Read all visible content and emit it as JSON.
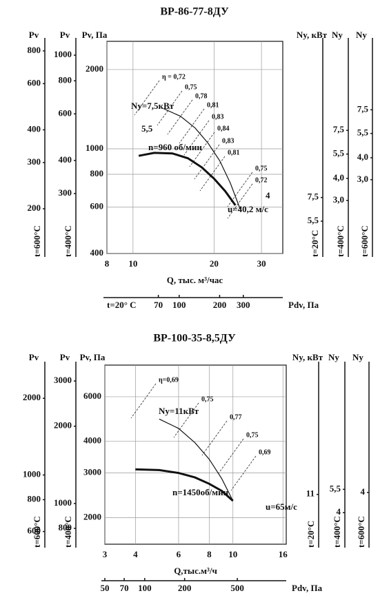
{
  "chart_data": [
    {
      "type": "line",
      "title": "ВР-86-77-8ДУ",
      "x_label": "Q, тыс. м³/час",
      "y_label": "Pv, Па",
      "log_x": true,
      "log_y": true,
      "grid": true,
      "xlim": [
        8,
        36
      ],
      "xticks": [
        8,
        10,
        20,
        30
      ],
      "ylim": [
        400,
        2560
      ],
      "yticks": [
        400,
        600,
        800,
        1000,
        2000
      ],
      "series": [
        {
          "name": "n=960 об/мин",
          "color": "#111111",
          "width": 3,
          "x": [
            10.5,
            12,
            14,
            16,
            18,
            20,
            22,
            24
          ],
          "values": [
            940,
            965,
            960,
            920,
            850,
            770,
            690,
            610
          ]
        },
        {
          "name": "Nу=7,5кВт",
          "color": "#111111",
          "width": 1.2,
          "x": [
            13,
            15,
            17,
            19,
            21,
            23,
            25
          ],
          "values": [
            1420,
            1330,
            1200,
            1050,
            900,
            740,
            590
          ]
        }
      ],
      "annotations": [
        "5,5",
        "4",
        "u=40,2 м/с"
      ],
      "efficiency_labels": [
        {
          "value": 0.72,
          "label": "η = 0,72"
        },
        {
          "value": 0.75,
          "label": "0,75"
        },
        {
          "value": 0.78,
          "label": "0,78"
        },
        {
          "value": 0.81,
          "label": "0,81"
        },
        {
          "value": 0.83,
          "label": "0,83"
        },
        {
          "value": 0.84,
          "label": "0,84"
        },
        {
          "value": 0.83,
          "label": "0,83"
        },
        {
          "value": 0.81,
          "label": "0,81"
        },
        {
          "value": 0.75,
          "label": "0,75"
        },
        {
          "value": 0.72,
          "label": "0,72"
        }
      ],
      "side_axes": [
        {
          "side": "left",
          "label": "Pv",
          "temperature": "t=600°C",
          "ylim": [
            135,
            870
          ],
          "ticks": [
            200,
            300,
            400,
            600,
            800
          ]
        },
        {
          "side": "left",
          "label": "Pv",
          "temperature": "t=400°C",
          "ylim": [
            178,
            1128
          ],
          "ticks": [
            300,
            400,
            600,
            800,
            1000
          ]
        },
        {
          "side": "right",
          "label": "Ny, кВт",
          "temperature": "t=20°C",
          "ylim": [
            3.6,
            58
          ],
          "ticks": [
            {
              "value": 5.5,
              "label": "5,5"
            },
            {
              "value": 7.5,
              "label": "7,5"
            }
          ]
        },
        {
          "side": "right",
          "label": "Ny",
          "temperature": "t=400°C",
          "ylim": [
            1.5,
            24
          ],
          "ticks": [
            {
              "value": 3,
              "label": "3,0"
            },
            {
              "value": 4,
              "label": "4,0"
            },
            {
              "value": 5.5,
              "label": "5,5"
            },
            {
              "value": 7.5,
              "label": "7,5"
            }
          ]
        },
        {
          "side": "right",
          "label": "Ny",
          "temperature": "t=600°C",
          "ylim": [
            1.14,
            18.4
          ],
          "ticks": [
            {
              "value": 3,
              "label": "3,0"
            },
            {
              "value": 4,
              "label": "4,0"
            },
            {
              "value": 5.5,
              "label": "5,5"
            },
            {
              "value": 7.5,
              "label": "7,5"
            }
          ]
        }
      ],
      "bottom_axis": {
        "label": "Pdv, Па",
        "temperature": "t=20° С",
        "xlim": [
          29,
          590
        ],
        "ticks": [
          70,
          100,
          200,
          300
        ]
      }
    },
    {
      "type": "line",
      "title": "ВР-100-35-8,5ДУ",
      "x_label": "Q,тыс.м³/ч",
      "y_label": "Pv, Па",
      "log_x": true,
      "log_y": true,
      "grid": true,
      "xlim": [
        3,
        16.5
      ],
      "xticks": [
        3,
        4,
        6,
        8,
        10,
        16
      ],
      "ylim": [
        1570,
        8000
      ],
      "yticks": [
        2000,
        3000,
        4000,
        6000
      ],
      "series": [
        {
          "name": "n=1450об/мин",
          "color": "#111111",
          "width": 3,
          "x": [
            4,
            5,
            6,
            7,
            8,
            9,
            10
          ],
          "values": [
            3100,
            3080,
            3000,
            2880,
            2720,
            2550,
            2330
          ]
        },
        {
          "name": "Ny=11кВт",
          "color": "#111111",
          "width": 1.2,
          "x": [
            5,
            6,
            7,
            8,
            9,
            10
          ],
          "values": [
            4900,
            4500,
            3950,
            3400,
            2850,
            2330
          ]
        }
      ],
      "annotations": [
        "u=65м/с"
      ],
      "efficiency_labels": [
        {
          "value": 0.69,
          "label": "η=0,69"
        },
        {
          "value": 0.75,
          "label": "0,75"
        },
        {
          "value": 0.77,
          "label": "0,77"
        },
        {
          "value": 0.75,
          "label": "0,75"
        },
        {
          "value": 0.69,
          "label": "0,69"
        }
      ],
      "side_axes": [
        {
          "side": "left",
          "label": "Pv",
          "temperature": "t=600°C",
          "ylim": [
            535,
            2700
          ],
          "ticks": [
            600,
            800,
            1000,
            2000
          ]
        },
        {
          "side": "left",
          "label": "Pv",
          "temperature": "t=400°C",
          "ylim": [
            694,
            3460
          ],
          "ticks": [
            800,
            1000,
            2000,
            3000
          ]
        },
        {
          "side": "right",
          "label": "Ny, кВт",
          "temperature": "t=20°C",
          "ylim": [
            5.8,
            58
          ],
          "ticks": [
            11
          ]
        },
        {
          "side": "right",
          "label": "Ny",
          "temperature": "t=400°C",
          "ylim": [
            2.6,
            30
          ],
          "ticks": [
            4,
            {
              "value": 5.5,
              "label": "5,5"
            }
          ]
        },
        {
          "side": "right",
          "label": "Ny",
          "temperature": "t=600°C",
          "ylim": [
            2.0,
            22
          ],
          "ticks": [
            4
          ]
        }
      ],
      "bottom_axis": {
        "label": "Pdv, Па",
        "xlim": [
          50,
          1170
        ],
        "ticks": [
          50,
          70,
          100,
          200,
          500
        ]
      }
    }
  ]
}
